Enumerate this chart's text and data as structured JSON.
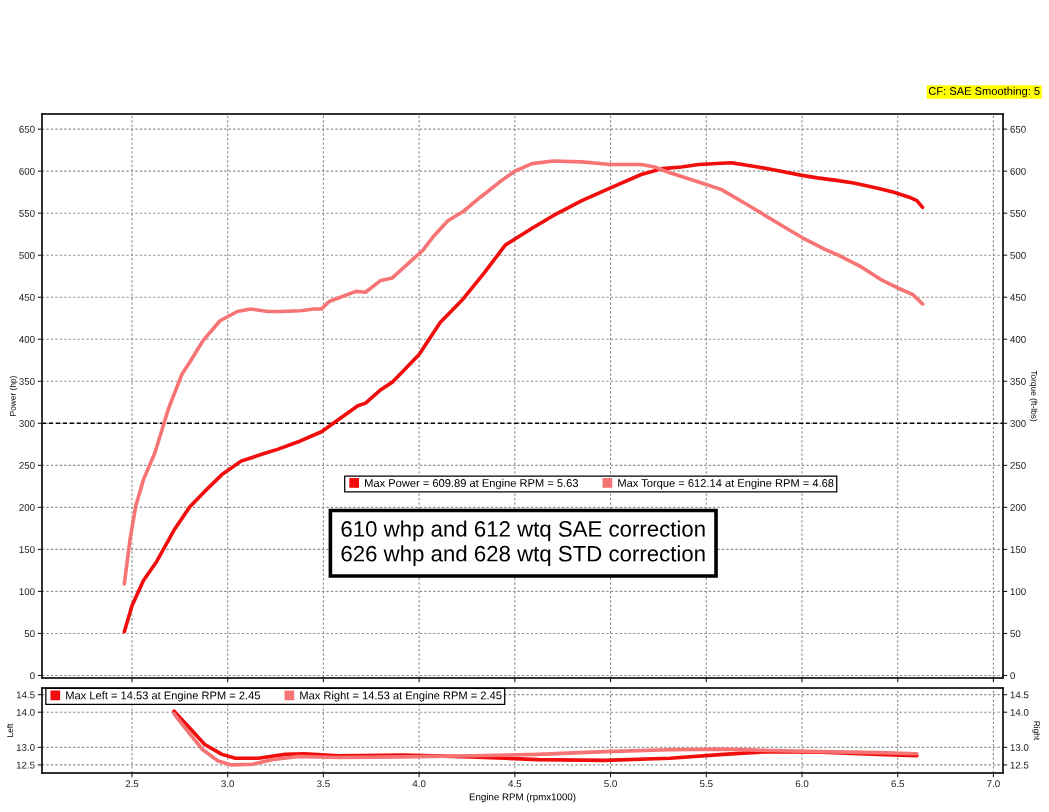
{
  "chart_data": [
    {
      "type": "line",
      "ylabel": "Power (hp)",
      "y2label": "Torque (ft-lbs)",
      "annotations": [
        "CF: SAE Smoothing: 5",
        "610 whp and 612 wtq SAE correction\n626 whp and 628 wtq STD correction"
      ],
      "xlim": [
        2.03,
        7.05
      ],
      "xticks": [
        2.5,
        3,
        3.5,
        4,
        4.5,
        5,
        5.5,
        6,
        6.5,
        7
      ],
      "ylim": [
        -3,
        668
      ],
      "yticks": [
        0,
        50,
        100,
        150,
        200,
        250,
        300,
        350,
        400,
        450,
        500,
        550,
        600,
        650
      ],
      "y2lim": [
        -3,
        668
      ],
      "y2ticks": [
        0,
        50,
        100,
        150,
        200,
        250,
        300,
        350,
        400,
        450,
        500,
        550,
        600,
        650
      ],
      "tick_labels": "y",
      "grid": true,
      "legend": "center",
      "ref_lines": [
        {
          "axis": "y",
          "value": 300,
          "color": "#000000",
          "line_style": "dashed"
        }
      ],
      "series": [
        {
          "name": "Max Power = 609.89 at Engine RPM = 5.63",
          "color": "#f20d0d",
          "x": [
            2.46,
            2.5,
            2.56,
            2.63,
            2.72,
            2.8,
            2.88,
            2.97,
            3.07,
            3.19,
            3.26,
            3.38,
            3.49,
            3.57,
            3.68,
            3.72,
            3.8,
            3.86,
            4.0,
            4.11,
            4.23,
            4.34,
            4.45,
            4.59,
            4.7,
            4.85,
            5.0,
            5.16,
            5.27,
            5.37,
            5.46,
            5.63,
            5.77,
            5.89,
            6.0,
            6.08,
            6.18,
            6.27,
            6.39,
            6.48,
            6.56,
            6.6,
            6.63
          ],
          "values": [
            52,
            83,
            113,
            136,
            173,
            200,
            219,
            239,
            255,
            264,
            269,
            279,
            290,
            303,
            321,
            324,
            340,
            349,
            382,
            420,
            448,
            479,
            512,
            532,
            547,
            565,
            580,
            596,
            603,
            605,
            608,
            610,
            605,
            600,
            595,
            592,
            589,
            586,
            580,
            575,
            569,
            565,
            557
          ]
        },
        {
          "name": "Max Torque = 612.14 at Engine RPM = 4.68",
          "color": "#f67474",
          "x": [
            2.46,
            2.49,
            2.52,
            2.56,
            2.62,
            2.69,
            2.76,
            2.8,
            2.87,
            2.96,
            3.05,
            3.12,
            3.21,
            3.28,
            3.38,
            3.45,
            3.49,
            3.53,
            3.67,
            3.72,
            3.8,
            3.86,
            4.02,
            4.07,
            4.15,
            4.23,
            4.32,
            4.42,
            4.5,
            4.59,
            4.7,
            4.85,
            5.0,
            5.16,
            5.23,
            5.31,
            5.46,
            5.58,
            5.73,
            5.89,
            6.0,
            6.12,
            6.19,
            6.31,
            6.42,
            6.5,
            6.58,
            6.63
          ],
          "values": [
            109,
            162,
            202,
            233,
            265,
            317,
            358,
            372,
            398,
            422,
            433,
            436,
            433,
            433,
            434,
            436,
            436,
            445,
            457,
            456,
            470,
            473,
            506,
            521,
            541,
            552,
            569,
            587,
            600,
            609,
            612,
            611,
            608,
            608,
            605,
            598,
            587,
            578,
            558,
            536,
            521,
            507,
            500,
            486,
            470,
            461,
            453,
            442
          ]
        }
      ]
    },
    {
      "type": "line",
      "xlabel": "Engine RPM (rpmx1000)",
      "ylabel": "Left",
      "y2label": "Right",
      "xlim": [
        2.03,
        7.05
      ],
      "xticks": [
        2.5,
        {
          "value": 3,
          "label": "3.0"
        },
        3.5,
        {
          "value": 4,
          "label": "4.0"
        },
        4.5,
        {
          "value": 5,
          "label": "5.0"
        },
        5.5,
        {
          "value": 6,
          "label": "6.0"
        },
        6.5,
        {
          "value": 7,
          "label": "7.0"
        }
      ],
      "ylim": [
        12.27,
        14.69
      ],
      "yticks": [
        12.5,
        {
          "value": 13,
          "label": "13.0"
        },
        {
          "value": 14,
          "label": "14.0"
        },
        14.5
      ],
      "y2lim": [
        12.27,
        14.69
      ],
      "y2ticks": [
        12.5,
        {
          "value": 13,
          "label": "13.0"
        },
        {
          "value": 14,
          "label": "14.0"
        },
        14.5
      ],
      "grid": true,
      "legend": "top left",
      "series": [
        {
          "name": "Max Left = 14.53 at Engine RPM = 2.45",
          "color": "#f20d0d",
          "x": [
            2.72,
            2.81,
            2.88,
            2.97,
            3.04,
            3.16,
            3.3,
            3.4,
            3.58,
            3.92,
            4.27,
            4.62,
            4.97,
            5.31,
            5.59,
            5.83,
            6.1,
            6.4,
            6.6
          ],
          "values": [
            14.03,
            13.5,
            13.08,
            12.8,
            12.69,
            12.69,
            12.8,
            12.82,
            12.76,
            12.78,
            12.73,
            12.65,
            12.63,
            12.69,
            12.8,
            12.88,
            12.86,
            12.8,
            12.76
          ]
        },
        {
          "name": "Max Right = 14.53 at Engine RPM = 2.45",
          "color": "#f67474",
          "x": [
            2.72,
            2.8,
            2.87,
            2.95,
            3.02,
            3.13,
            3.23,
            3.37,
            3.58,
            3.92,
            4.27,
            4.62,
            4.97,
            5.31,
            5.59,
            5.83,
            6.1,
            6.4,
            6.6
          ],
          "values": [
            13.95,
            13.4,
            12.93,
            12.61,
            12.5,
            12.52,
            12.65,
            12.74,
            12.71,
            12.73,
            12.76,
            12.8,
            12.88,
            12.93,
            12.95,
            12.91,
            12.88,
            12.85,
            12.82
          ]
        }
      ]
    }
  ]
}
